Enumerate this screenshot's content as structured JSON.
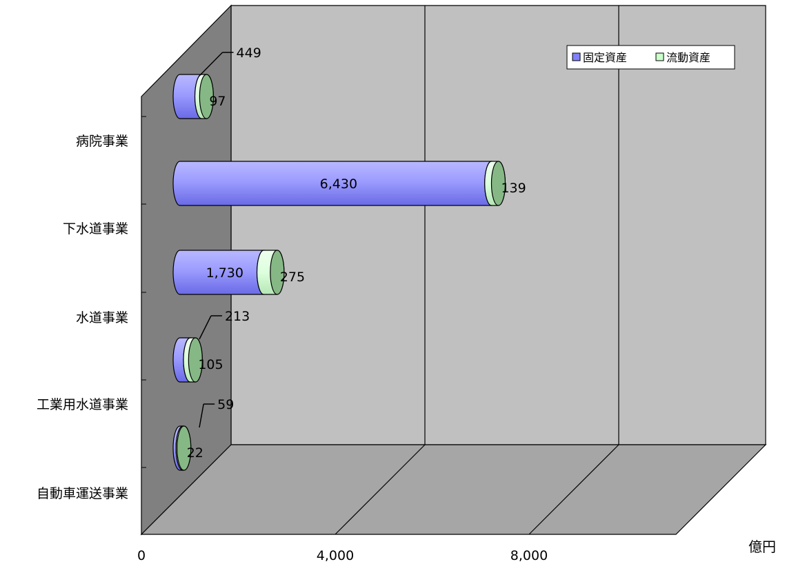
{
  "chart_data": {
    "type": "bar",
    "orientation": "horizontal",
    "stacked": true,
    "three_d": true,
    "categories": [
      "病院事業",
      "下水道事業",
      "水道事業",
      "工業用水道事業",
      "自動車運送事業"
    ],
    "series": [
      {
        "name": "固定資産",
        "values": [
          449,
          6430,
          1730,
          213,
          59
        ],
        "labels": [
          "449",
          "6,430",
          "1,730",
          "213",
          "59"
        ],
        "color": "#8080ff"
      },
      {
        "name": "流動資産",
        "values": [
          97,
          139,
          275,
          105,
          22
        ],
        "labels": [
          "97",
          "139",
          "275",
          "105",
          "22"
        ],
        "color": "#ccffcc"
      }
    ],
    "x_ticks": [
      "0",
      "4,000",
      "8,000"
    ],
    "xlim": [
      0,
      12000
    ],
    "unit": "億円",
    "legend": "top-right",
    "grid": true,
    "colors": {
      "back_wall": "#c0c0c0",
      "side_wall": "#808080",
      "floor": "#a6a6a6"
    }
  }
}
